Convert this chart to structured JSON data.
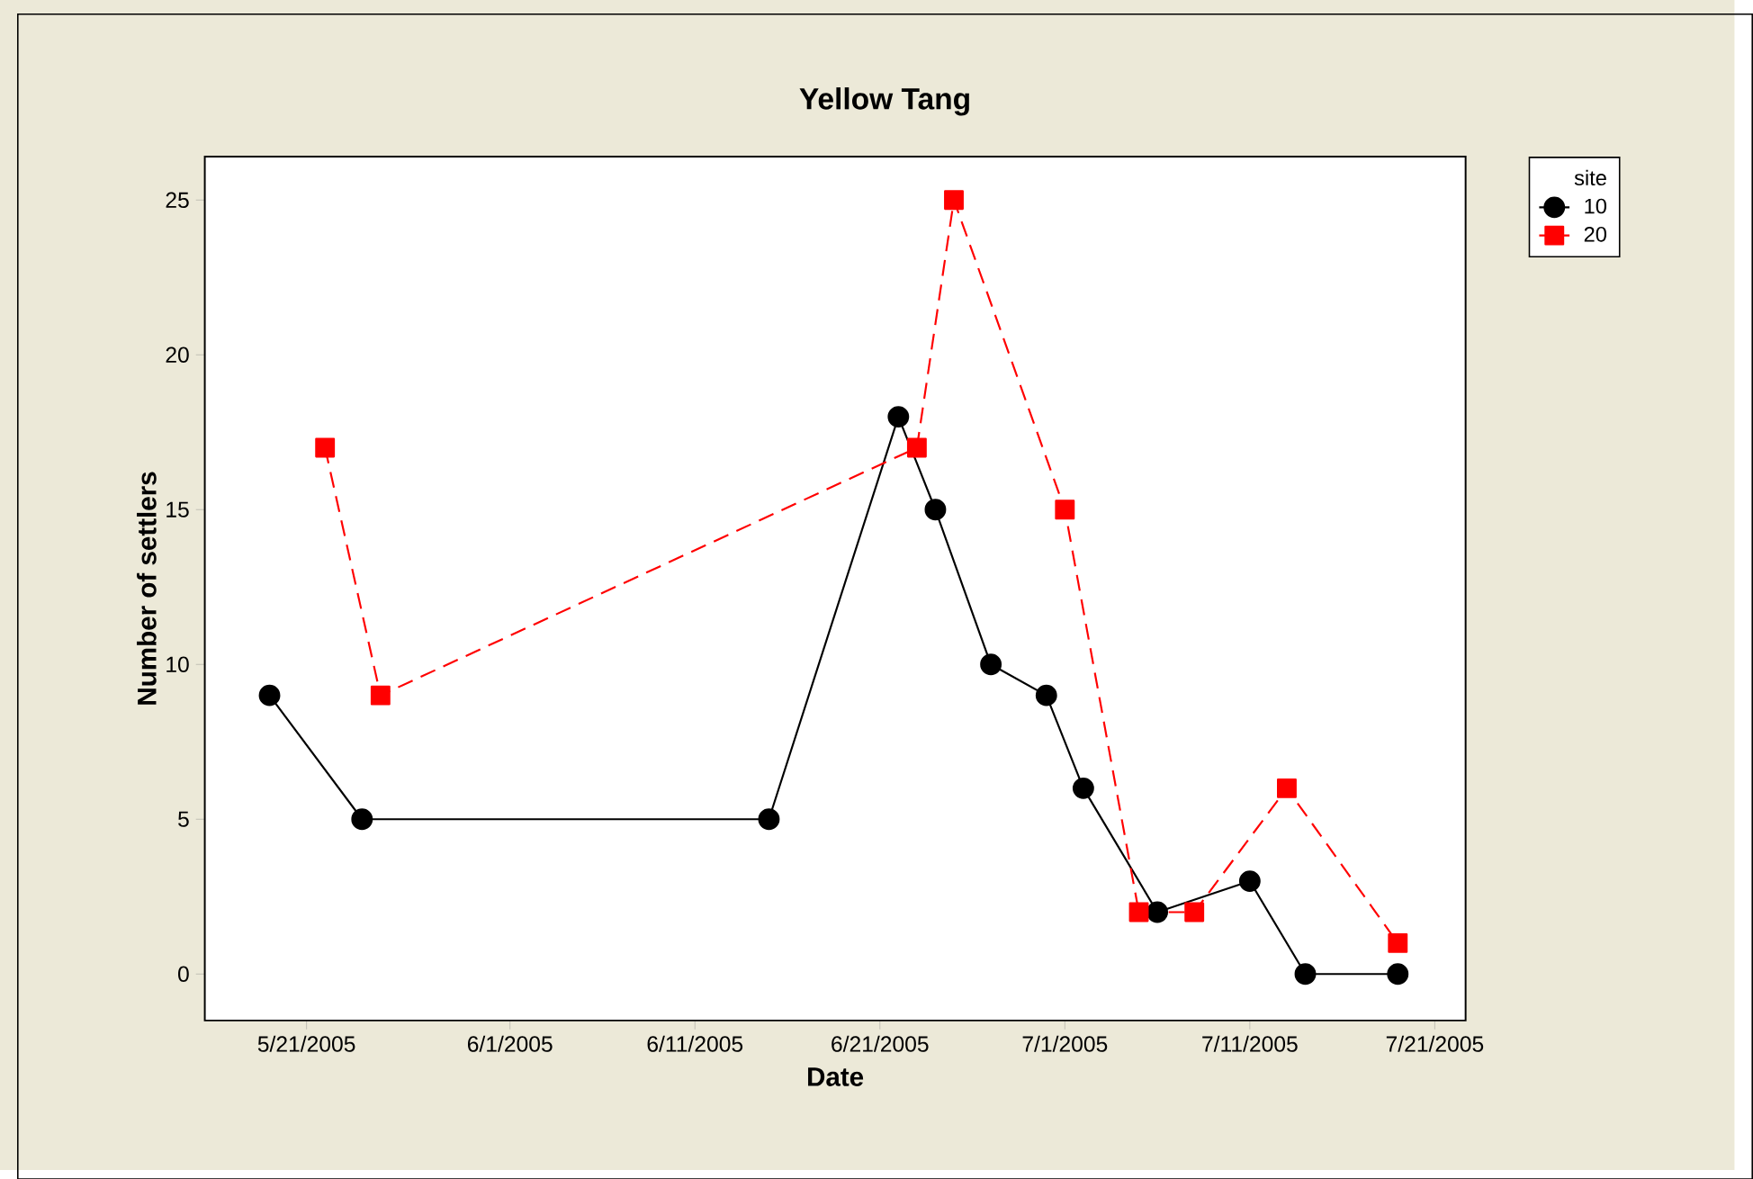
{
  "chart_data": {
    "type": "line",
    "title": "Yellow Tang",
    "xlabel": "Date",
    "ylabel": "Number of settlers",
    "legend_title": "site",
    "legend": "right",
    "xlim": [
      "2005-05-15T12:00",
      "2005-07-22T16:00"
    ],
    "ylim": [
      -1.5,
      26.4
    ],
    "yticks": [
      0,
      5,
      10,
      15,
      20,
      25
    ],
    "xticks": [
      {
        "value": "2005-05-21",
        "label": "5/21/2005"
      },
      {
        "value": "2005-06-01",
        "label": "6/1/2005"
      },
      {
        "value": "2005-06-11",
        "label": "6/11/2005"
      },
      {
        "value": "2005-06-21",
        "label": "6/21/2005"
      },
      {
        "value": "2005-07-01",
        "label": "7/1/2005"
      },
      {
        "value": "2005-07-11",
        "label": "7/11/2005"
      },
      {
        "value": "2005-07-21",
        "label": "7/21/2005"
      }
    ],
    "grid": false,
    "series": [
      {
        "name": "10",
        "color": "#000000",
        "marker": "circle",
        "line_style": "solid",
        "x": [
          "2005-05-19",
          "2005-05-24",
          "2005-06-15",
          "2005-06-22",
          "2005-06-24",
          "2005-06-27",
          "2005-06-30",
          "2005-07-02",
          "2005-07-06",
          "2005-07-11",
          "2005-07-14",
          "2005-07-19"
        ],
        "values": [
          9,
          5,
          5,
          18,
          15,
          10,
          9,
          6,
          2,
          3,
          0,
          0
        ]
      },
      {
        "name": "20",
        "color": "#ff0000",
        "marker": "square",
        "line_style": "dashed",
        "x": [
          "2005-05-22",
          "2005-05-25",
          "2005-06-23",
          "2005-06-25",
          "2005-07-01",
          "2005-07-05",
          "2005-07-08",
          "2005-07-13",
          "2005-07-19"
        ],
        "values": [
          17,
          9,
          17,
          25,
          15,
          2,
          2,
          6,
          1
        ]
      }
    ]
  }
}
